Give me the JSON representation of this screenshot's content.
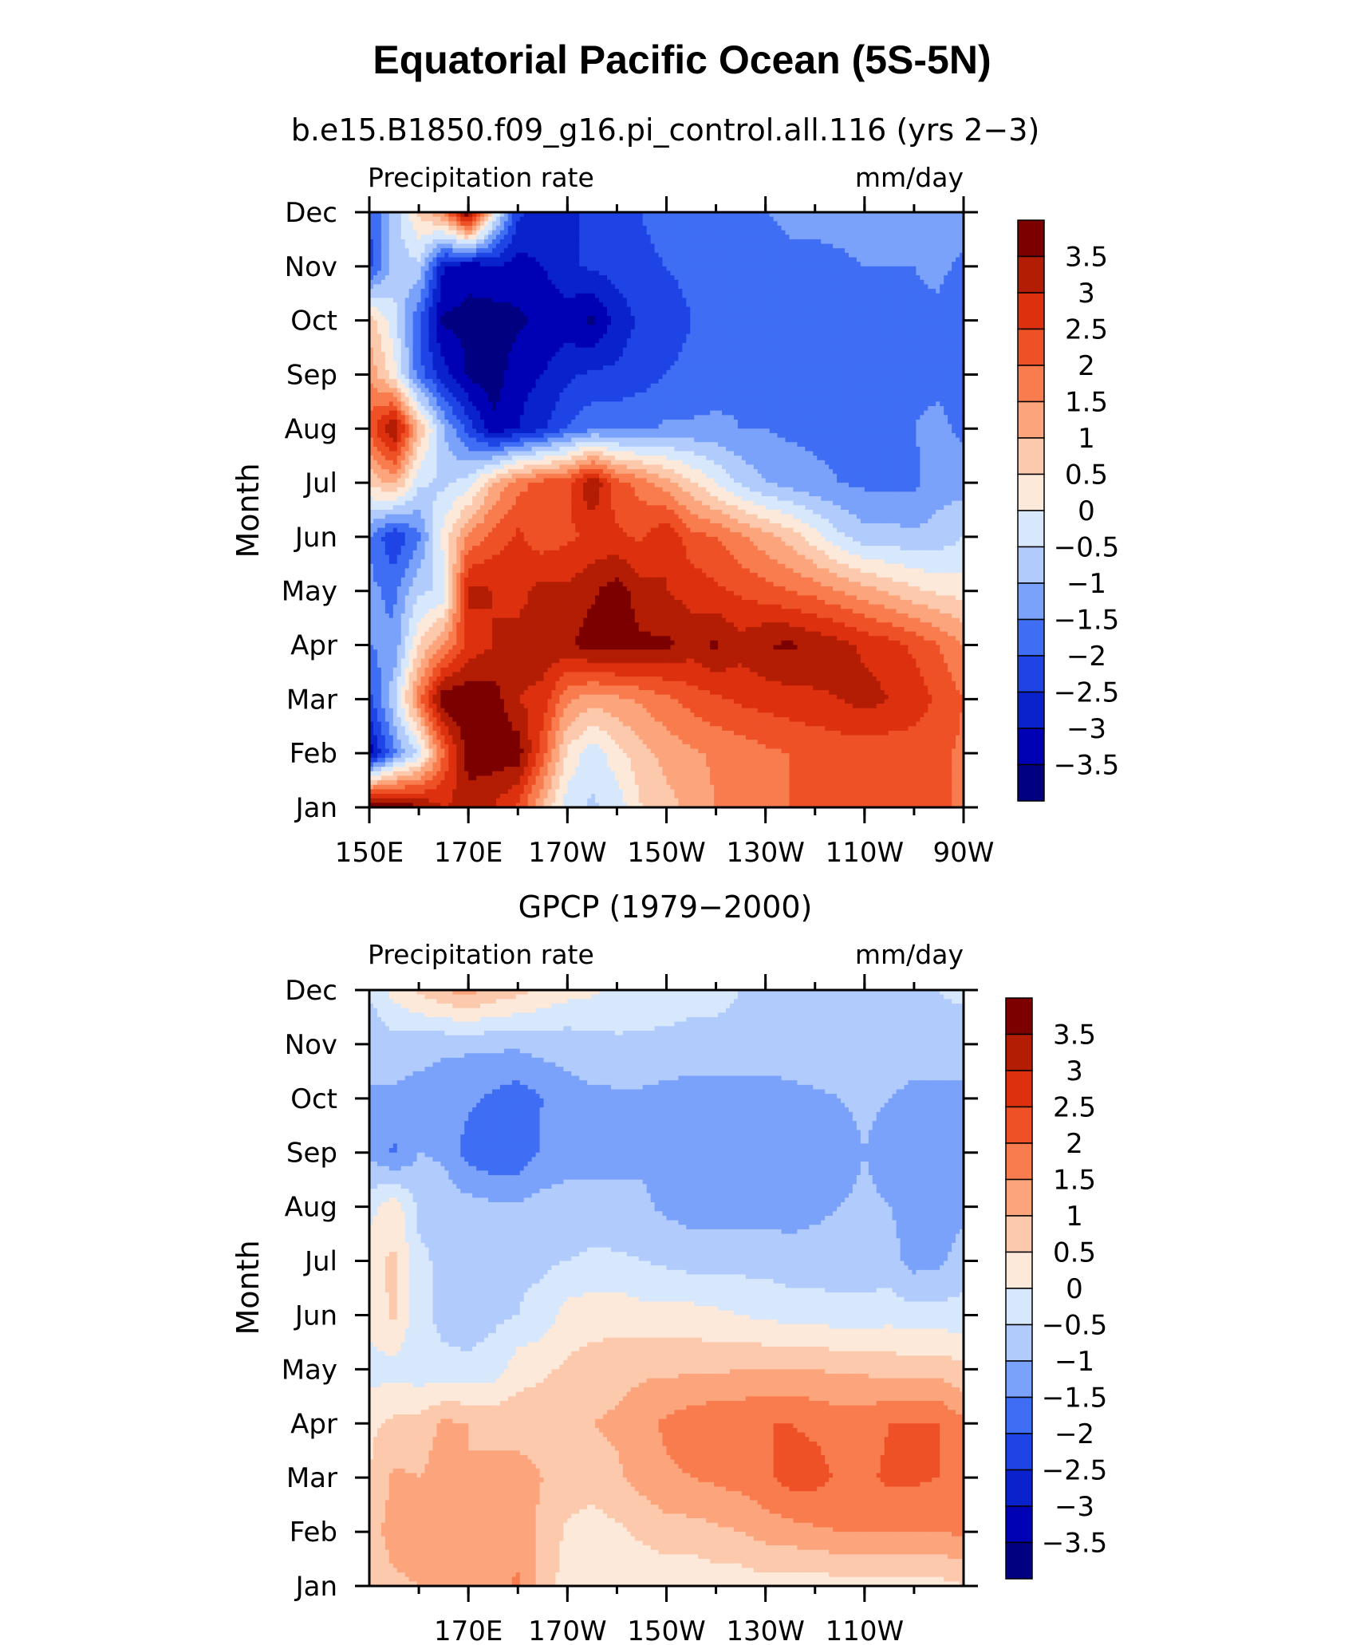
{
  "figure": {
    "title": "Equatorial Pacific Ocean (5S-5N)",
    "palette": [
      "#000080",
      "#0000b4",
      "#0a22cc",
      "#1f44e6",
      "#3f6ef4",
      "#7aa2fa",
      "#b1ccfc",
      "#d8e8fc",
      "#fde9da",
      "#fcc9ad",
      "#fca47c",
      "#f87c4e",
      "#ef5127",
      "#dc300e",
      "#b21d04",
      "#7d0000"
    ]
  },
  "chart_data": [
    {
      "type": "heatmap",
      "title": "b.e15.B1850.f09_g16.pi_control.all.116 (yrs 2−3)",
      "left_label": "Precipitation rate",
      "right_label": "mm/day",
      "ylabel": "Month",
      "months": [
        "Jan",
        "Feb",
        "Mar",
        "Apr",
        "May",
        "Jun",
        "Jul",
        "Aug",
        "Sep",
        "Oct",
        "Nov",
        "Dec"
      ],
      "x_tick_labels": [
        "150E",
        "170E",
        "170W",
        "150W",
        "130W",
        "110W",
        "90W"
      ],
      "x_tick_lons": [
        150,
        170,
        190,
        210,
        230,
        250,
        270
      ],
      "xlim": [
        150,
        270
      ],
      "colorbar_labels": [
        "3.5",
        "3",
        "2.5",
        "2",
        "1.5",
        "1",
        "0.5",
        "0",
        "−0.5",
        "−1",
        "−1.5",
        "−2",
        "−2.5",
        "−3",
        "−3.5"
      ],
      "levels": [
        -3.5,
        -3,
        -2.5,
        -2,
        -1.5,
        -1,
        -0.5,
        0,
        0.5,
        1,
        1.5,
        2,
        2.5,
        3,
        3.5
      ],
      "lons": [
        150,
        155,
        160,
        165,
        170,
        175,
        180,
        185,
        190,
        195,
        200,
        205,
        210,
        215,
        220,
        225,
        230,
        235,
        240,
        245,
        250,
        255,
        260,
        265,
        270
      ],
      "values": [
        [
          4.2,
          4.0,
          3.6,
          3.0,
          3.2,
          3.0,
          2.4,
          1.0,
          -0.3,
          -0.6,
          -0.3,
          0.5,
          0.8,
          1.2,
          1.5,
          1.8,
          1.9,
          2.0,
          2.0,
          2.1,
          2.1,
          2.2,
          2.2,
          2.0,
          2.0
        ],
        [
          -3.3,
          -1.6,
          -0.4,
          2.0,
          3.8,
          3.8,
          3.8,
          2.2,
          0.4,
          -0.3,
          0.3,
          0.8,
          1.2,
          1.4,
          1.6,
          1.7,
          1.9,
          2.0,
          2.1,
          2.2,
          2.2,
          2.2,
          2.2,
          2.1,
          1.9
        ],
        [
          -2.2,
          -0.6,
          1.8,
          3.9,
          4.0,
          3.8,
          3.0,
          2.8,
          1.6,
          1.2,
          1.4,
          1.6,
          1.9,
          2.2,
          2.4,
          2.6,
          2.7,
          2.8,
          2.9,
          3.0,
          3.2,
          3.0,
          2.8,
          2.4,
          2.0
        ],
        [
          -1.5,
          -1.4,
          0.5,
          1.5,
          2.6,
          3.0,
          3.2,
          3.4,
          3.4,
          3.8,
          3.8,
          3.6,
          3.6,
          3.3,
          3.6,
          3.2,
          3.5,
          3.6,
          3.4,
          3.2,
          2.9,
          2.7,
          2.4,
          2.0,
          1.5
        ],
        [
          -1.4,
          -1.6,
          -0.6,
          -0.4,
          3.2,
          3.0,
          2.8,
          3.2,
          3.1,
          3.4,
          3.8,
          3.2,
          3.0,
          2.8,
          2.6,
          2.4,
          2.2,
          2.0,
          1.8,
          1.5,
          1.2,
          0.9,
          0.6,
          0.4,
          0.3
        ],
        [
          -1.5,
          -2.5,
          -1.6,
          0.2,
          1.6,
          2.2,
          2.6,
          2.2,
          2.4,
          2.6,
          2.6,
          2.4,
          3.0,
          2.2,
          2.0,
          1.6,
          1.2,
          0.8,
          0.2,
          -0.4,
          -0.8,
          -0.8,
          -0.9,
          -0.8,
          -0.5
        ],
        [
          0.6,
          1.2,
          -0.4,
          -0.6,
          -0.3,
          1.0,
          1.8,
          2.2,
          2.4,
          3.5,
          2.2,
          1.8,
          1.2,
          0.6,
          0.0,
          -0.6,
          -1.0,
          -1.2,
          -1.4,
          -1.5,
          -1.6,
          -1.6,
          -1.6,
          -1.2,
          -1.2
        ],
        [
          2.2,
          3.6,
          1.0,
          -1.0,
          -2.2,
          -3.4,
          -3.0,
          -2.6,
          -2.0,
          -1.6,
          -1.6,
          -1.6,
          -1.4,
          -1.4,
          -1.4,
          -1.5,
          -1.5,
          -1.6,
          -1.6,
          -1.6,
          -1.6,
          -1.6,
          -1.5,
          -1.4,
          -1.6
        ],
        [
          1.4,
          0.2,
          -1.8,
          -2.8,
          -3.6,
          -3.8,
          -3.2,
          -3.0,
          -2.6,
          -2.4,
          -2.4,
          -2.2,
          -2.0,
          -1.9,
          -1.7,
          -1.6,
          -1.6,
          -1.6,
          -1.6,
          -1.6,
          -1.6,
          -1.6,
          -1.6,
          -1.6,
          -1.8
        ],
        [
          0.8,
          -0.3,
          -2.0,
          -3.6,
          -3.6,
          -3.8,
          -3.6,
          -3.4,
          -3.3,
          -3.6,
          -2.8,
          -2.4,
          -2.2,
          -2.0,
          -1.9,
          -1.7,
          -1.6,
          -1.6,
          -1.6,
          -1.6,
          -1.6,
          -1.6,
          -1.6,
          -1.6,
          -2.0
        ],
        [
          -2.2,
          -0.8,
          -0.6,
          -3.0,
          -3.4,
          -3.0,
          -3.2,
          -3.0,
          -2.6,
          -2.4,
          -2.3,
          -2.1,
          -2.0,
          -1.9,
          -1.8,
          -1.7,
          -1.7,
          -1.6,
          -1.6,
          -1.6,
          -1.5,
          -1.5,
          -1.5,
          -1.4,
          -1.6
        ],
        [
          -2.0,
          -0.8,
          0.6,
          1.6,
          4.0,
          0.2,
          -2.4,
          -2.8,
          -2.6,
          -2.4,
          -2.2,
          -2.0,
          -1.8,
          -1.8,
          -1.7,
          -1.6,
          -1.5,
          -1.4,
          -1.4,
          -1.3,
          -1.2,
          -1.1,
          -1.1,
          -1.1,
          -1.2
        ]
      ]
    },
    {
      "type": "heatmap",
      "title": "GPCP (1979−2000)",
      "left_label": "Precipitation rate",
      "right_label": "mm/day",
      "ylabel": "Month",
      "months": [
        "Jan",
        "Feb",
        "Mar",
        "Apr",
        "May",
        "Jun",
        "Jul",
        "Aug",
        "Sep",
        "Oct",
        "Nov",
        "Dec"
      ],
      "x_tick_labels": [
        "170E",
        "170W",
        "150W",
        "130W",
        "110W"
      ],
      "x_tick_lons": [
        170,
        190,
        210,
        230,
        250
      ],
      "xlim": [
        150,
        270
      ],
      "colorbar_labels": [
        "3.5",
        "3",
        "2.5",
        "2",
        "1.5",
        "1",
        "0.5",
        "0",
        "−0.5",
        "−1",
        "−1.5",
        "−2",
        "−2.5",
        "−3",
        "−3.5"
      ],
      "levels": [
        -3.5,
        -3,
        -2.5,
        -2,
        -1.5,
        -1,
        -0.5,
        0,
        0.5,
        1,
        1.5,
        2,
        2.5,
        3,
        3.5
      ],
      "lons": [
        150,
        155,
        160,
        165,
        170,
        175,
        180,
        185,
        190,
        195,
        200,
        205,
        210,
        215,
        220,
        225,
        230,
        235,
        240,
        245,
        250,
        255,
        260,
        265,
        270
      ],
      "values": [
        [
          0.7,
          0.9,
          1.0,
          1.1,
          1.2,
          1.3,
          1.6,
          0.7,
          0.3,
          0.2,
          0.1,
          0.1,
          0.1,
          0.1,
          0.2,
          0.2,
          0.3,
          0.2,
          0.2,
          0.3,
          0.3,
          0.3,
          0.3,
          0.3,
          0.5
        ],
        [
          0.8,
          1.2,
          1.3,
          1.2,
          1.2,
          1.5,
          1.2,
          0.9,
          0.4,
          0.3,
          0.4,
          0.6,
          0.8,
          0.8,
          0.9,
          1.0,
          1.2,
          1.3,
          1.4,
          1.5,
          1.5,
          1.5,
          1.5,
          1.5,
          1.6
        ],
        [
          0.5,
          1.1,
          1.0,
          1.2,
          1.0,
          1.1,
          1.2,
          1.0,
          0.8,
          0.7,
          0.9,
          1.2,
          1.4,
          1.5,
          1.6,
          1.7,
          1.9,
          2.2,
          2.2,
          1.9,
          1.9,
          2.1,
          2.1,
          2.0,
          1.8
        ],
        [
          0.4,
          0.6,
          0.7,
          1.1,
          1.0,
          0.9,
          0.8,
          0.8,
          0.9,
          1.0,
          1.1,
          1.3,
          1.6,
          1.8,
          1.9,
          1.9,
          2.0,
          2.0,
          1.9,
          1.8,
          1.8,
          2.0,
          2.0,
          2.0,
          1.6
        ],
        [
          -0.2,
          -0.2,
          -0.3,
          -0.4,
          -0.4,
          -0.3,
          0.3,
          0.4,
          0.6,
          0.7,
          0.8,
          0.9,
          0.9,
          0.9,
          0.9,
          1.0,
          1.0,
          1.0,
          1.0,
          0.9,
          0.9,
          0.8,
          0.8,
          0.8,
          0.6
        ],
        [
          0.2,
          0.6,
          -0.4,
          -0.6,
          -0.7,
          -0.6,
          -0.5,
          -0.3,
          0.2,
          0.3,
          0.3,
          0.2,
          0.2,
          0.2,
          0.1,
          0.0,
          -0.1,
          -0.2,
          -0.2,
          -0.3,
          -0.3,
          -0.2,
          -0.3,
          -0.3,
          -0.3
        ],
        [
          0.3,
          0.6,
          -0.4,
          -0.6,
          -0.6,
          -0.6,
          -0.6,
          -0.6,
          -0.5,
          -0.4,
          -0.4,
          -0.5,
          -0.6,
          -0.7,
          -0.7,
          -0.7,
          -0.7,
          -0.8,
          -0.8,
          -0.8,
          -0.8,
          -0.8,
          -1.2,
          -1.1,
          -0.8
        ],
        [
          -0.2,
          0.3,
          -0.6,
          -0.7,
          -0.8,
          -0.9,
          -0.9,
          -0.8,
          -0.8,
          -0.8,
          -0.9,
          -0.9,
          -1.1,
          -1.2,
          -1.2,
          -1.2,
          -1.2,
          -1.2,
          -1.1,
          -1.0,
          -0.9,
          -1.0,
          -1.2,
          -1.2,
          -1.1
        ],
        [
          -1.1,
          -1.6,
          -1.0,
          -1.1,
          -1.7,
          -1.9,
          -1.9,
          -1.4,
          -1.2,
          -1.2,
          -1.1,
          -1.1,
          -1.3,
          -1.4,
          -1.4,
          -1.4,
          -1.4,
          -1.4,
          -1.3,
          -1.2,
          -1.0,
          -1.2,
          -1.4,
          -1.3,
          -1.2
        ],
        [
          -1.0,
          -1.1,
          -1.2,
          -1.3,
          -1.4,
          -1.6,
          -1.8,
          -1.5,
          -1.2,
          -1.1,
          -1.1,
          -1.1,
          -1.2,
          -1.3,
          -1.3,
          -1.3,
          -1.3,
          -1.2,
          -1.1,
          -1.0,
          -0.9,
          -1.0,
          -1.2,
          -1.2,
          -1.1
        ],
        [
          -1.0,
          -0.7,
          -0.8,
          -0.9,
          -0.9,
          -0.9,
          -0.9,
          -0.8,
          -0.8,
          -0.7,
          -0.6,
          -0.6,
          -0.6,
          -0.6,
          -0.6,
          -0.6,
          -0.6,
          -0.6,
          -0.6,
          -0.6,
          -0.6,
          -0.6,
          -0.6,
          -0.6,
          -0.8
        ],
        [
          -0.4,
          0.2,
          0.6,
          1.0,
          1.2,
          0.9,
          0.7,
          0.4,
          0.2,
          0.1,
          -0.1,
          -0.2,
          -0.3,
          -0.4,
          -0.4,
          -0.5,
          -0.5,
          -0.5,
          -0.5,
          -0.5,
          -0.5,
          -0.5,
          -0.5,
          -0.5,
          -0.4
        ]
      ]
    }
  ]
}
